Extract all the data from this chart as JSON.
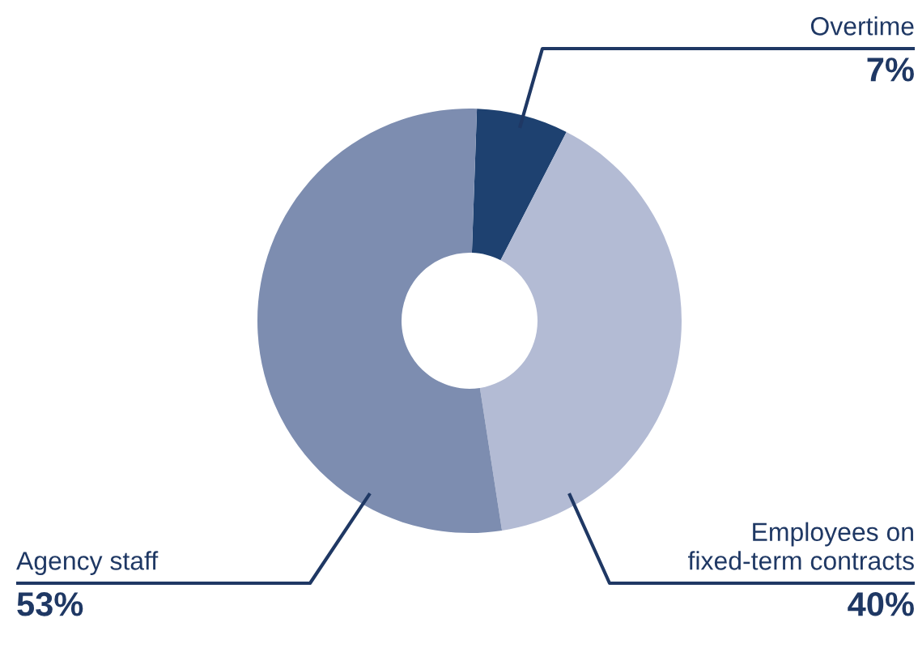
{
  "chart_data": {
    "type": "donut",
    "categories": [
      "Overtime",
      "Employees on\nfixed-term contracts",
      "Agency staff"
    ],
    "values": [
      7,
      40,
      53
    ],
    "value_labels": [
      "7%",
      "40%",
      "53%"
    ],
    "colors": [
      "#1e4170",
      "#b3bbd4",
      "#7d8db0"
    ],
    "legend": false
  }
}
